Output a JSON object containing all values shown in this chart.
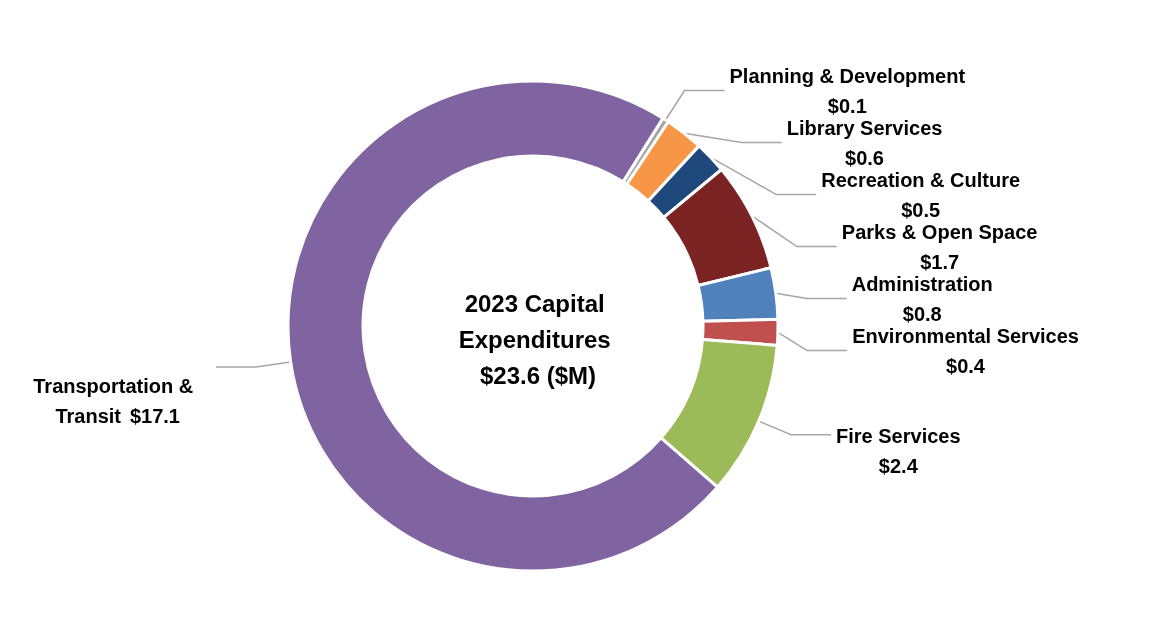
{
  "chart_data": {
    "type": "donut",
    "title": "2023 Capital Expenditures $23.6 ($M)",
    "categories": [
      "Planning & Development",
      "Library Services",
      "Recreation & Culture",
      "Parks & Open Space",
      "Administration",
      "Environmental Services",
      "Fire Services",
      "Transportation & Transit"
    ],
    "values": [
      0.1,
      0.6,
      0.5,
      1.7,
      0.8,
      0.4,
      2.4,
      17.1
    ],
    "value_labels": [
      "$0.1",
      "$0.6",
      "$0.5",
      "$1.7",
      "$0.8",
      "$0.4",
      "$2.4",
      "$17.1"
    ],
    "colors": [
      "#a5a5a5",
      "#f79646",
      "#1f497d",
      "#7b2323",
      "#4f81bd",
      "#c0504d",
      "#9bbb59",
      "#8064a2"
    ],
    "legend": false
  }
}
